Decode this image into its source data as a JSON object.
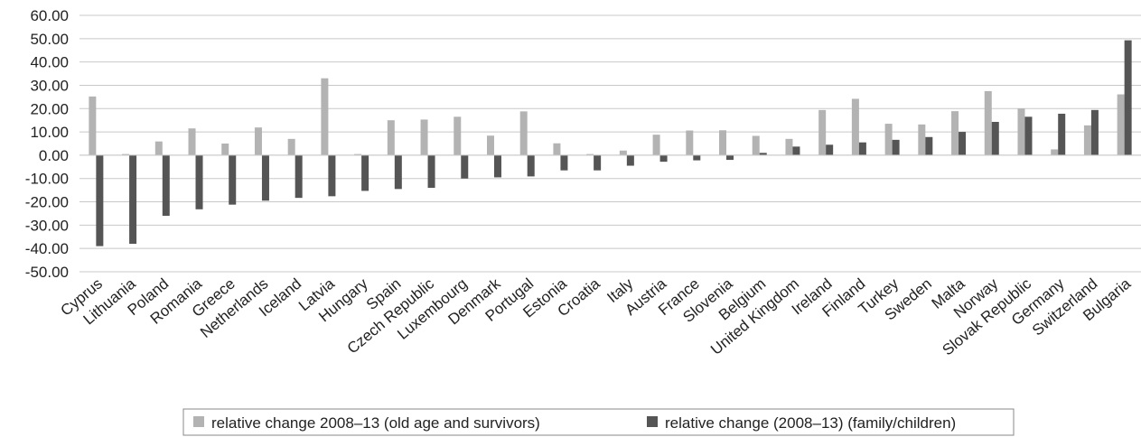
{
  "chart_data": {
    "type": "bar",
    "ylim": [
      -50,
      60
    ],
    "y_ticks": [
      "60.00",
      "50.00",
      "40.00",
      "30.00",
      "20.00",
      "10.00",
      "0.00",
      "-10.00",
      "-20.00",
      "-30.00",
      "-40.00",
      "-50.00"
    ],
    "grid": true,
    "legend_position": "bottom",
    "categories": [
      "Cyprus",
      "Lithuania",
      "Poland",
      "Romania",
      "Greece",
      "Netherlands",
      "Iceland",
      "Latvia",
      "Hungary",
      "Spain",
      "Czech Republic",
      "Luxembourg",
      "Denmark",
      "Portugal",
      "Estonia",
      "Croatia",
      "Italy",
      "Austria",
      "France",
      "Slovenia",
      "Belgium",
      "United Kingdom",
      "Ireland",
      "Finland",
      "Turkey",
      "Sweden",
      "Malta",
      "Norway",
      "Slovak Republic",
      "Germany",
      "Switzerland",
      "Bulgaria"
    ],
    "series": [
      {
        "name": "relative change 2008–13 (old age and survivors)",
        "color": "#b3b3b3",
        "values": [
          25.2,
          0.5,
          5.9,
          11.5,
          5.0,
          11.9,
          7.0,
          33.0,
          0.5,
          15.0,
          15.3,
          16.5,
          8.4,
          18.8,
          5.1,
          0.5,
          2.0,
          8.8,
          10.6,
          10.7,
          8.3,
          7.0,
          19.4,
          24.2,
          13.5,
          13.2,
          18.9,
          27.5,
          20.0,
          2.5,
          12.8,
          26.1
        ]
      },
      {
        "name": "relative change (2008–13) (family/children)",
        "color": "#555555",
        "values": [
          -39.0,
          -38.0,
          -26.0,
          -23.2,
          -21.2,
          -19.5,
          -18.3,
          -17.6,
          -15.3,
          -14.5,
          -14.0,
          -10.0,
          -9.5,
          -9.1,
          -6.5,
          -6.5,
          -4.5,
          -2.8,
          -2.2,
          -2.0,
          1.0,
          3.7,
          4.5,
          5.5,
          6.6,
          7.8,
          10.0,
          14.3,
          16.5,
          17.8,
          19.4,
          49.3
        ]
      }
    ]
  }
}
